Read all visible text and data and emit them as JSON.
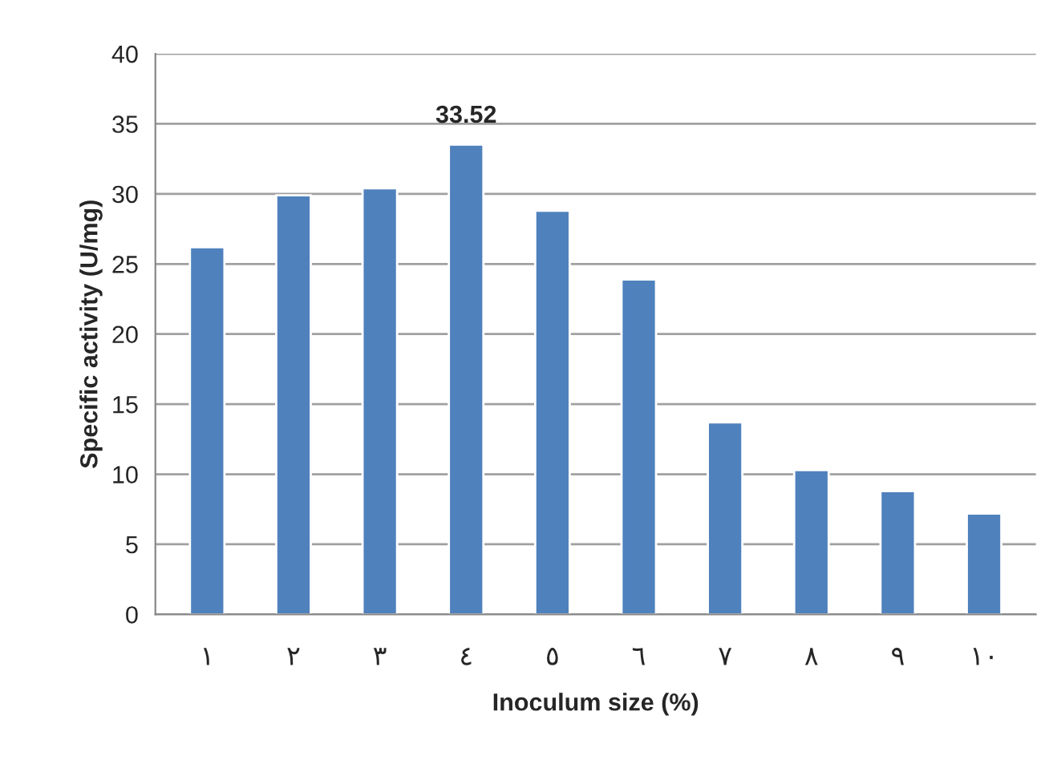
{
  "chart_data": {
    "type": "bar",
    "xlabel": "Inoculum size (%)",
    "ylabel": "Specific activity (U/mg)",
    "categories": [
      "١",
      "٢",
      "٣",
      "٤",
      "٥",
      "٦",
      "٧",
      "٨",
      "٩",
      "١٠"
    ],
    "values": [
      26.2,
      29.9,
      30.4,
      33.52,
      28.8,
      23.9,
      13.7,
      10.3,
      8.8,
      7.2
    ],
    "value_labels": [
      null,
      null,
      null,
      "33.52",
      null,
      null,
      null,
      null,
      null,
      null
    ],
    "color": "#4f81bd",
    "ylim": [
      0,
      40
    ],
    "yticks": [
      0,
      5,
      10,
      15,
      20,
      25,
      30,
      35,
      40
    ],
    "grid": "y"
  }
}
